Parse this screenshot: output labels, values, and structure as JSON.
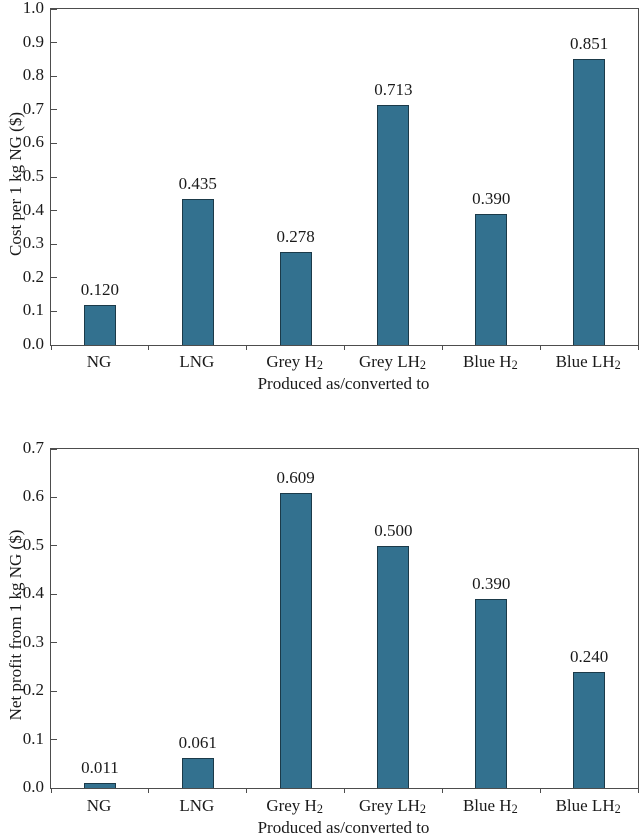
{
  "figure": {
    "background": "#ffffff",
    "description": "Two stacked single-series bar charts comparing cost and net profit for natural gas conversion products"
  },
  "colors": {
    "bar_fill": "#33718F",
    "bar_border": "#1B3A49",
    "axis_line": "#4D4D4D",
    "text": "#1A1A1A"
  },
  "chart_data": [
    {
      "name": "cost-chart",
      "type": "bar",
      "title": "",
      "categories": [
        {
          "base": "NG",
          "sub": ""
        },
        {
          "base": "LNG",
          "sub": ""
        },
        {
          "base": "Grey H",
          "sub": "2"
        },
        {
          "base": "Grey LH",
          "sub": "2"
        },
        {
          "base": "Blue H",
          "sub": "2"
        },
        {
          "base": "Blue LH",
          "sub": "2"
        }
      ],
      "values": [
        0.12,
        0.435,
        0.278,
        0.713,
        0.39,
        0.851
      ],
      "value_labels": [
        "0.120",
        "0.435",
        "0.278",
        "0.713",
        "0.390",
        "0.851"
      ],
      "xlabel": "Produced as/converted to",
      "ylabel": "Cost per 1 kg NG ($)",
      "ylim": [
        0,
        1.0
      ],
      "ytick_step": 0.1,
      "ytick_labels": [
        "0.0",
        "0.1",
        "0.2",
        "0.3",
        "0.4",
        "0.5",
        "0.6",
        "0.7",
        "0.8",
        "0.9",
        "1.0"
      ],
      "grid": false,
      "legend": null
    },
    {
      "name": "net-profit-chart",
      "type": "bar",
      "title": "",
      "categories": [
        {
          "base": "NG",
          "sub": ""
        },
        {
          "base": "LNG",
          "sub": ""
        },
        {
          "base": "Grey H",
          "sub": "2"
        },
        {
          "base": "Grey LH",
          "sub": "2"
        },
        {
          "base": "Blue H",
          "sub": "2"
        },
        {
          "base": "Blue LH",
          "sub": "2"
        }
      ],
      "values": [
        0.011,
        0.061,
        0.609,
        0.5,
        0.39,
        0.24
      ],
      "value_labels": [
        "0.011",
        "0.061",
        "0.609",
        "0.500",
        "0.390",
        "0.240"
      ],
      "xlabel": "Produced as/converted to",
      "ylabel": "Net profit from 1 kg NG ($)",
      "ylim": [
        0,
        0.7
      ],
      "ytick_step": 0.1,
      "ytick_labels": [
        "0.0",
        "0.1",
        "0.2",
        "0.3",
        "0.4",
        "0.5",
        "0.6",
        "0.7"
      ],
      "grid": false,
      "legend": null
    }
  ]
}
